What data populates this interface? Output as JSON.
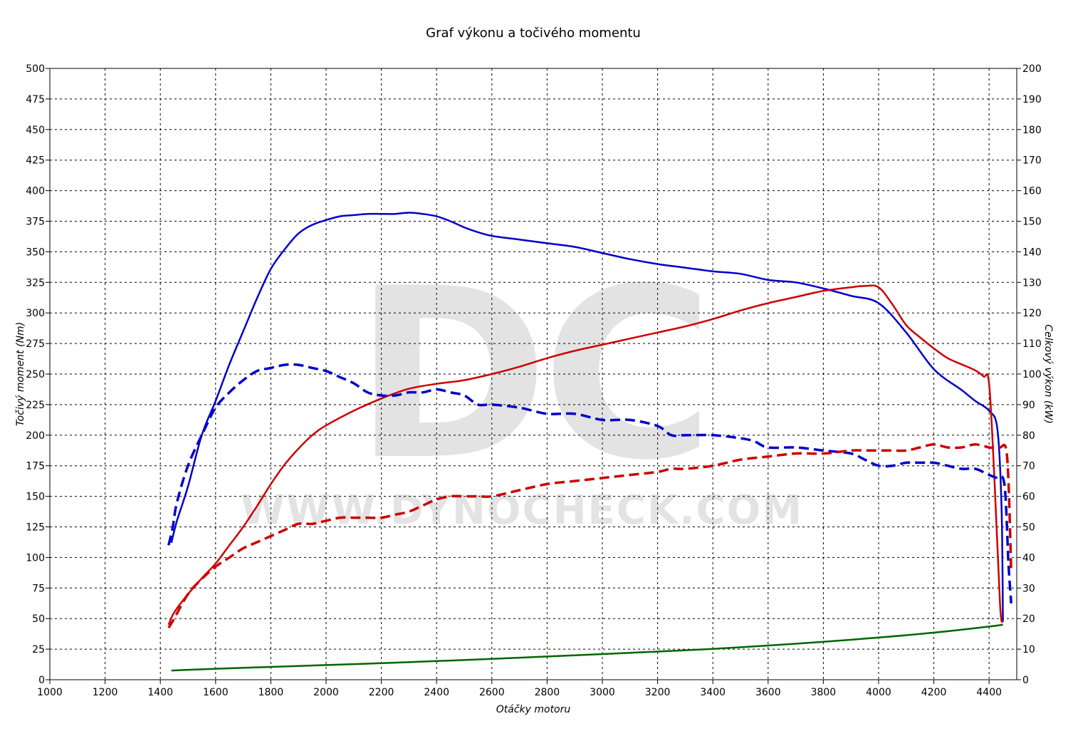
{
  "chart_data": {
    "type": "line",
    "title": "Graf výkonu a točivého momentu",
    "xlabel": "Otáčky motoru",
    "ylabel_left": "Točivý moment (Nm)",
    "ylabel_right": "Celkový výkon (kW)",
    "watermark": {
      "big": "DC",
      "url": "WWW.DYNOCHECK.COM"
    },
    "xlim": [
      1000,
      4500
    ],
    "ylim_left": [
      0,
      500
    ],
    "ylim_right": [
      0,
      200
    ],
    "xticks": [
      1000,
      1200,
      1400,
      1600,
      1800,
      2000,
      2200,
      2400,
      2600,
      2800,
      3000,
      3200,
      3400,
      3600,
      3800,
      4000,
      4200,
      4400
    ],
    "xtick_labels": [
      "1000",
      "1200",
      "1400",
      "1600",
      "1800",
      "2000",
      "2200",
      "2400",
      "2600",
      "2800",
      "3000",
      "3200",
      "3400",
      "3600",
      "3800",
      "4000",
      "4200",
      "4400"
    ],
    "yticks_left": [
      0,
      25,
      50,
      75,
      100,
      125,
      150,
      175,
      200,
      225,
      250,
      275,
      300,
      325,
      350,
      375,
      400,
      425,
      450,
      475,
      500
    ],
    "ytick_labels_left": [
      "0",
      "25",
      "50",
      "75",
      "100",
      "125",
      "150",
      "175",
      "200",
      "225",
      "250",
      "275",
      "300",
      "325",
      "350",
      "375",
      "400",
      "425",
      "450",
      "475",
      "500"
    ],
    "yticks_right": [
      0,
      10,
      20,
      30,
      40,
      50,
      60,
      70,
      80,
      90,
      100,
      110,
      120,
      130,
      140,
      150,
      160,
      170,
      180,
      190,
      200
    ],
    "ytick_labels_right": [
      "0",
      "10",
      "20",
      "30",
      "40",
      "50",
      "60",
      "70",
      "80",
      "90",
      "100",
      "110",
      "120",
      "130",
      "140",
      "150",
      "160",
      "170",
      "180",
      "190",
      "200"
    ],
    "grid": true,
    "legend": "none",
    "series": [
      {
        "axis": "left",
        "color": "#0000cc",
        "dash": "solid",
        "x": [
          1440,
          1460,
          1500,
          1550,
          1600,
          1650,
          1700,
          1750,
          1800,
          1850,
          1900,
          1950,
          2000,
          2050,
          2100,
          2150,
          2200,
          2250,
          2300,
          2350,
          2400,
          2450,
          2500,
          2550,
          2600,
          2700,
          2800,
          2900,
          3000,
          3100,
          3200,
          3300,
          3400,
          3500,
          3600,
          3700,
          3800,
          3900,
          4000,
          4100,
          4200,
          4300,
          4350,
          4400,
          4430,
          4445,
          4450
        ],
        "y": [
          112,
          130,
          158,
          200,
          228,
          258,
          285,
          312,
          336,
          352,
          365,
          372,
          376,
          379,
          380,
          381,
          381,
          381,
          382,
          381,
          379,
          375,
          370,
          366,
          363,
          360,
          357,
          354,
          349,
          344,
          340,
          337,
          334,
          332,
          327,
          325,
          320,
          314,
          308,
          284,
          254,
          237,
          228,
          220,
          205,
          140,
          48
        ]
      },
      {
        "axis": "left",
        "color": "#cc0000",
        "dash": "solid",
        "x": [
          1430,
          1450,
          1500,
          1550,
          1600,
          1650,
          1700,
          1750,
          1800,
          1850,
          1900,
          1950,
          2000,
          2100,
          2200,
          2300,
          2400,
          2500,
          2600,
          2700,
          2800,
          2900,
          3000,
          3100,
          3200,
          3300,
          3400,
          3500,
          3600,
          3700,
          3800,
          3900,
          3950,
          4000,
          4050,
          4100,
          4150,
          4200,
          4250,
          4300,
          4350,
          4380,
          4400,
          4420,
          4440,
          4450
        ],
        "y": [
          45,
          55,
          70,
          83,
          95,
          110,
          125,
          142,
          160,
          176,
          189,
          200,
          208,
          220,
          230,
          238,
          242,
          245,
          250,
          256,
          263,
          269,
          274,
          279,
          284,
          289,
          295,
          302,
          308,
          313,
          318,
          321,
          322,
          321,
          307,
          290,
          280,
          271,
          263,
          258,
          253,
          248,
          242,
          160,
          60,
          47
        ]
      },
      {
        "axis": "right",
        "color": "#0000cc",
        "dash": "dashed",
        "x": [
          1430,
          1445,
          1460,
          1500,
          1550,
          1600,
          1650,
          1700,
          1750,
          1800,
          1850,
          1900,
          1950,
          2000,
          2050,
          2100,
          2150,
          2200,
          2250,
          2300,
          2350,
          2400,
          2450,
          2500,
          2550,
          2600,
          2700,
          2800,
          2900,
          3000,
          3100,
          3200,
          3250,
          3300,
          3400,
          3500,
          3550,
          3600,
          3700,
          3800,
          3900,
          3950,
          4000,
          4050,
          4100,
          4150,
          4200,
          4250,
          4300,
          4350,
          4400,
          4430,
          4450,
          4460,
          4470,
          4480
        ],
        "y": [
          44,
          50,
          58,
          70,
          80,
          89,
          94,
          98,
          101,
          102,
          103,
          103,
          102,
          101,
          99,
          97,
          94,
          93,
          93,
          94,
          94,
          95,
          94,
          93,
          90,
          90,
          89,
          87,
          87,
          85,
          85,
          83,
          80,
          80,
          80,
          79,
          78,
          76,
          76,
          75,
          74,
          72,
          70,
          70,
          71,
          71,
          71,
          70,
          69,
          69,
          67,
          66,
          66,
          59,
          38,
          25
        ]
      },
      {
        "axis": "right",
        "color": "#cc0000",
        "dash": "dashed",
        "x": [
          1430,
          1450,
          1500,
          1550,
          1600,
          1650,
          1700,
          1750,
          1800,
          1850,
          1900,
          1950,
          2000,
          2050,
          2100,
          2150,
          2200,
          2250,
          2300,
          2350,
          2400,
          2450,
          2500,
          2550,
          2600,
          2700,
          2800,
          2900,
          3000,
          3100,
          3200,
          3250,
          3300,
          3400,
          3500,
          3600,
          3700,
          3800,
          3900,
          3950,
          4000,
          4050,
          4100,
          4150,
          4200,
          4250,
          4300,
          4350,
          4400,
          4420,
          4440,
          4460,
          4470,
          4480
        ],
        "y": [
          17,
          20,
          28,
          33,
          37,
          40,
          43,
          45,
          47,
          49,
          51,
          51,
          52,
          53,
          53,
          53,
          53,
          54,
          55,
          57,
          59,
          60,
          60,
          60,
          60,
          62,
          64,
          65,
          66,
          67,
          68,
          69,
          69,
          70,
          72,
          73,
          74,
          74,
          75,
          75,
          75,
          75,
          75,
          76,
          77,
          76,
          76,
          77,
          76,
          76,
          76,
          76,
          65,
          35
        ]
      },
      {
        "axis": "right",
        "color": "#006600",
        "dash": "solid",
        "x": [
          1440,
          1600,
          1800,
          2000,
          2200,
          2400,
          2600,
          2800,
          3000,
          3200,
          3400,
          3600,
          3800,
          4000,
          4200,
          4400,
          4450
        ],
        "y": [
          3,
          3.6,
          4.2,
          4.8,
          5.4,
          6.1,
          6.8,
          7.6,
          8.4,
          9.2,
          10.1,
          11.2,
          12.4,
          13.8,
          15.4,
          17.4,
          18
        ]
      }
    ]
  }
}
